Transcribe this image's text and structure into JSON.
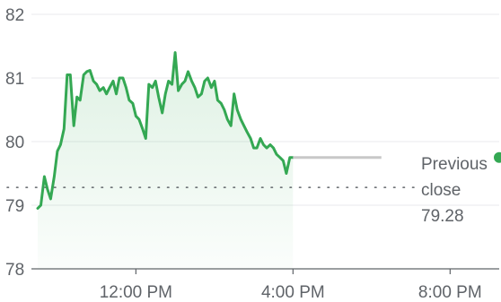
{
  "chart_data": {
    "type": "line",
    "y_ticks": [
      "82",
      "81",
      "80",
      "79",
      "78"
    ],
    "y_tick_values": [
      82,
      81,
      80,
      79,
      78
    ],
    "x_ticks": [
      "12:00 PM",
      "4:00 PM",
      "8:00 PM"
    ],
    "x_tick_values": [
      12,
      16,
      20
    ],
    "ylim": [
      78,
      82
    ],
    "xlim": [
      9.5,
      21.25
    ],
    "grid": true,
    "previous_close": {
      "label_line1": "Previous",
      "label_line2": "close",
      "value_text": "79.28",
      "value": 79.28
    },
    "series": [
      {
        "color": "#34a853",
        "x": [
          9.5,
          9.58,
          9.67,
          9.75,
          9.83,
          9.92,
          10.0,
          10.08,
          10.17,
          10.25,
          10.33,
          10.42,
          10.5,
          10.58,
          10.67,
          10.75,
          10.83,
          10.92,
          11.0,
          11.08,
          11.17,
          11.25,
          11.33,
          11.42,
          11.5,
          11.58,
          11.67,
          11.75,
          11.83,
          11.92,
          12.0,
          12.08,
          12.17,
          12.25,
          12.33,
          12.42,
          12.5,
          12.58,
          12.67,
          12.75,
          12.83,
          12.92,
          13.0,
          13.08,
          13.17,
          13.25,
          13.33,
          13.42,
          13.5,
          13.58,
          13.67,
          13.75,
          13.83,
          13.92,
          14.0,
          14.08,
          14.17,
          14.25,
          14.33,
          14.42,
          14.5,
          14.58,
          14.67,
          14.75,
          14.83,
          14.92,
          15.0,
          15.08,
          15.17,
          15.25,
          15.33,
          15.42,
          15.5,
          15.58,
          15.67,
          15.75,
          15.83,
          15.92,
          16.0
        ],
        "values": [
          78.95,
          79.0,
          79.45,
          79.25,
          79.1,
          79.45,
          79.85,
          79.95,
          80.2,
          81.05,
          81.05,
          80.25,
          80.7,
          80.65,
          81.05,
          81.1,
          81.12,
          80.95,
          80.9,
          80.8,
          80.85,
          80.75,
          80.85,
          80.95,
          80.75,
          81.0,
          81.0,
          80.85,
          80.65,
          80.6,
          80.4,
          80.35,
          80.2,
          80.05,
          80.9,
          80.85,
          80.95,
          80.7,
          80.45,
          80.75,
          80.95,
          80.9,
          81.4,
          80.8,
          80.9,
          80.95,
          81.1,
          80.95,
          80.85,
          80.7,
          80.75,
          80.95,
          81.0,
          80.85,
          80.95,
          80.65,
          80.6,
          80.5,
          80.35,
          80.25,
          80.75,
          80.5,
          80.35,
          80.25,
          80.15,
          80.05,
          79.9,
          79.9,
          80.05,
          79.95,
          79.9,
          79.95,
          79.9,
          79.8,
          79.75,
          79.7,
          79.5,
          79.75,
          79.75
        ]
      }
    ],
    "projection": {
      "color": "#c8c8c8",
      "x": [
        16.0,
        18.25
      ],
      "value": 79.75
    },
    "marker": {
      "color": "#34a853",
      "x": 21.25,
      "value": 79.75
    }
  }
}
